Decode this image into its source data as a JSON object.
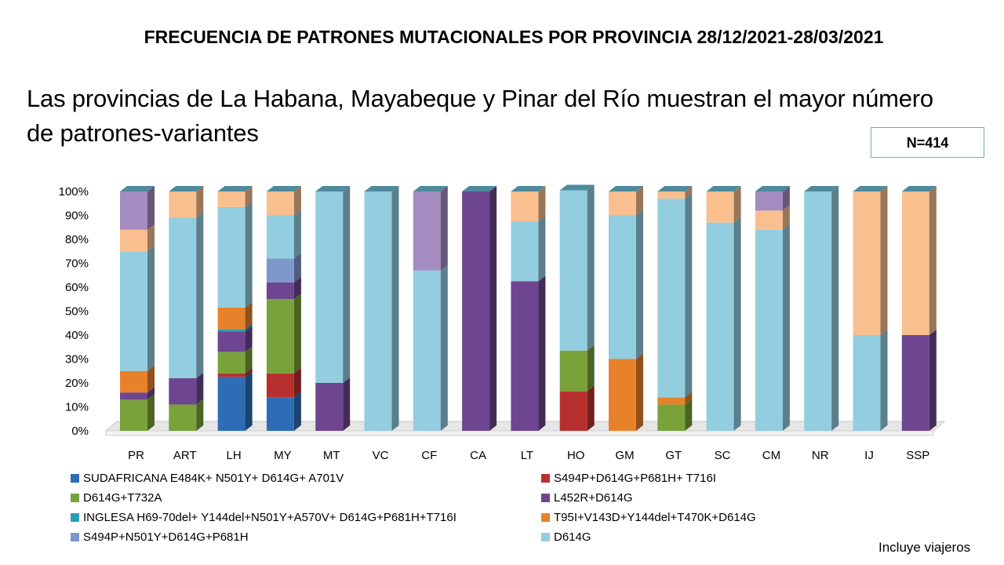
{
  "header": {
    "title": "FRECUENCIA DE PATRONES MUTACIONALES POR PROVINCIA 28/12/2021-28/03/2021",
    "subtitle": "Las provincias de La Habana, Mayabeque y Pinar del Río muestran el mayor número de patrones-variantes",
    "n_label": "N=414",
    "footnote": "Incluye viajeros"
  },
  "chart_data": {
    "type": "bar",
    "stacked": true,
    "percent_stacked": true,
    "three_d": true,
    "ylim": [
      0,
      100
    ],
    "yticks": [
      "0%",
      "10%",
      "20%",
      "30%",
      "40%",
      "50%",
      "60%",
      "70%",
      "80%",
      "90%",
      "100%"
    ],
    "grid": false,
    "legend_position": "bottom",
    "categories": [
      "PR",
      "ART",
      "LH",
      "MY",
      "MT",
      "VC",
      "CF",
      "CA",
      "LT",
      "HO",
      "GM",
      "GT",
      "SC",
      "CM",
      "NR",
      "IJ",
      "SSP"
    ],
    "series": [
      {
        "name": "SUDAFRICANA E484K+ N501Y+ D614G+ A701V",
        "color": "#2e6db5",
        "values": [
          0,
          0,
          22.5,
          14,
          0,
          0,
          0,
          0,
          0,
          0,
          0,
          0,
          0,
          0,
          0,
          0,
          0
        ]
      },
      {
        "name": "S494P+D614G+P681H+ T716I",
        "color": "#b8302e",
        "values": [
          0,
          0,
          1.5,
          10,
          0,
          0,
          0,
          0,
          0,
          16.5,
          0,
          0,
          0,
          0,
          0,
          0,
          0
        ]
      },
      {
        "name": "D614G+T732A",
        "color": "#79a23a",
        "values": [
          13,
          11,
          9,
          31,
          0,
          0,
          0,
          0,
          0,
          17,
          0,
          11,
          0,
          0,
          0,
          0,
          0
        ]
      },
      {
        "name": "L452R+D614G",
        "color": "#6e4590",
        "values": [
          3,
          11,
          8.5,
          7,
          20,
          0,
          0,
          100,
          62.5,
          0,
          0,
          0,
          0,
          0,
          0,
          0,
          40
        ]
      },
      {
        "name": "INGLESA H69-70del+ Y144del+N501Y+A570V+ D614G+P681H+T716I",
        "color": "#2b9cb5",
        "values": [
          0,
          0,
          1,
          0,
          0,
          0,
          0,
          0,
          0,
          0,
          0,
          0,
          0,
          0,
          0,
          0,
          0
        ]
      },
      {
        "name": "T95I+V143D+Y144del+T470K+D614G",
        "color": "#e8822a",
        "values": [
          9,
          0,
          9,
          0,
          0,
          0,
          0,
          0,
          0,
          0,
          30,
          3,
          0,
          0,
          0,
          0,
          0
        ]
      },
      {
        "name": "S494P+N501Y+D614G+P681H",
        "color": "#7f98cc",
        "values": [
          0,
          0,
          0,
          10,
          0,
          0,
          0,
          0,
          0,
          0,
          0,
          0,
          0,
          0,
          0,
          0,
          0
        ]
      },
      {
        "name": "D614G",
        "color": "#93cde0",
        "values": [
          50,
          67,
          42,
          18,
          80,
          100,
          67,
          0,
          25,
          67,
          60,
          83,
          87,
          84,
          100,
          40,
          0
        ]
      },
      {
        "name": "",
        "color": "#f9bf8f",
        "values": [
          9,
          11,
          6.5,
          10,
          0,
          0,
          0,
          0,
          12.5,
          0,
          10,
          3,
          13,
          8,
          0,
          60,
          60
        ]
      },
      {
        "name": "",
        "color": "#a48cc0",
        "values": [
          16,
          0,
          0,
          0,
          0,
          0,
          33,
          0,
          0,
          0,
          0,
          0,
          0,
          8,
          0,
          0,
          0
        ]
      }
    ]
  }
}
